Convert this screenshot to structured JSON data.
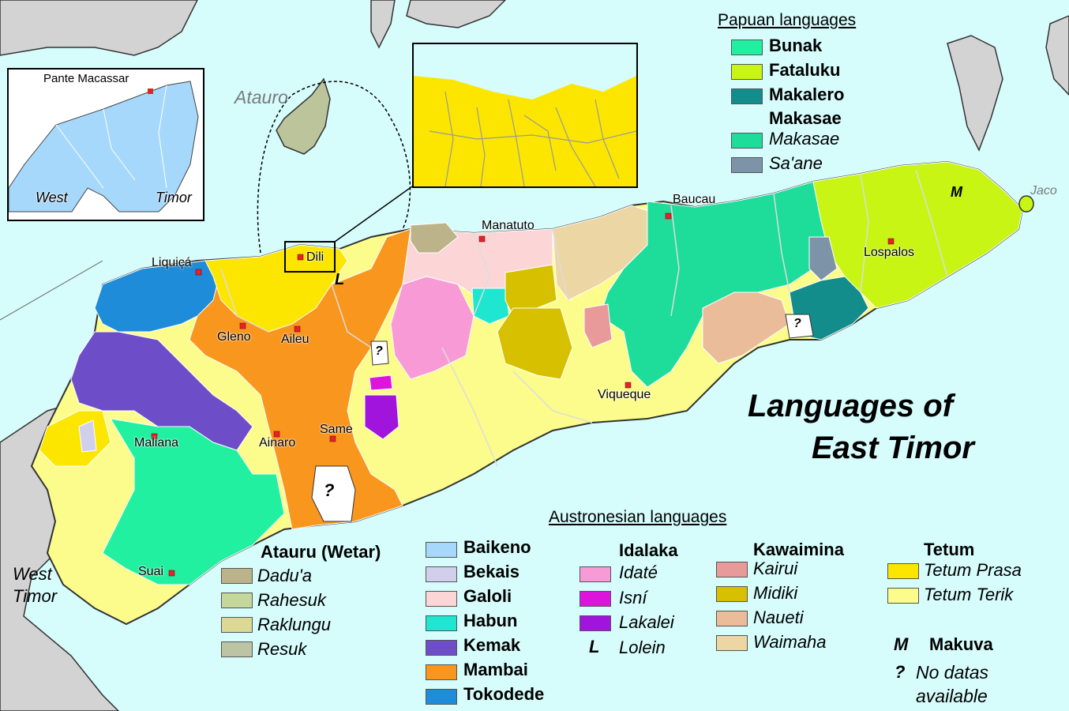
{
  "map": {
    "title_line1": "Languages of",
    "title_line2": "East Timor",
    "places": {
      "atauro": "Atauro",
      "dili": "Dili",
      "liquica": "Liquiçá",
      "manatuto": "Manatuto",
      "baucau": "Baucau",
      "lospalos": "Lospalos",
      "jaco": "Jaco",
      "gleno": "Gleno",
      "aileu": "Aileu",
      "viqueque": "Viqueque",
      "same": "Same",
      "ainaro": "Ainaro",
      "maliana": "Maliana",
      "suai": "Suai",
      "west_timor_line1": "West",
      "west_timor_line2": "Timor",
      "pante_macassar": "Pante Macassar",
      "inset_west": "West",
      "inset_timor": "Timor"
    },
    "map_marks": {
      "lolein_marker": "L",
      "makuva_marker": "M",
      "unknown_1": "?",
      "unknown_2": "?",
      "unknown_3": "?"
    }
  },
  "legend": {
    "papuan": {
      "heading": "Papuan languages",
      "items": [
        {
          "label": "Bunak",
          "color": "#21f0a0",
          "style": "bold"
        },
        {
          "label": "Fataluku",
          "color": "#c8f514",
          "style": "bold"
        },
        {
          "label": "Makalero",
          "color": "#138c8c",
          "style": "bold"
        },
        {
          "label": "Makasae",
          "color": "",
          "style": "bold"
        },
        {
          "label": "Makasae",
          "color": "#1edc9a",
          "style": "italic"
        },
        {
          "label": "Sa'ane",
          "color": "#7c93a8",
          "style": "italic"
        }
      ]
    },
    "austronesian": {
      "heading": "Austronesian languages",
      "ataurus": {
        "head": "Atauru (Wetar)",
        "items": [
          {
            "label": "Dadu'a",
            "color": "#bcb38a"
          },
          {
            "label": "Rahesuk",
            "color": "#c4d89c"
          },
          {
            "label": "Raklungu",
            "color": "#dcd896"
          },
          {
            "label": "Resuk",
            "color": "#bcc4a4"
          }
        ]
      },
      "bold_langs": [
        {
          "label": "Baikeno",
          "color": "#a6d8fc"
        },
        {
          "label": "Bekais",
          "color": "#d0d0ec"
        },
        {
          "label": "Galoli",
          "color": "#fcd6d6"
        },
        {
          "label": "Habun",
          "color": "#1ee6d0"
        },
        {
          "label": "Kemak",
          "color": "#6e4ec8"
        },
        {
          "label": "Mambai",
          "color": "#f8961e"
        },
        {
          "label": "Tokodede",
          "color": "#1e8cd8"
        }
      ],
      "idalaka": {
        "head": "Idalaka",
        "items": [
          {
            "label": "Idaté",
            "color": "#f89ad6"
          },
          {
            "label": "Isní",
            "color": "#dc14dc"
          },
          {
            "label": "Lakalei",
            "color": "#a014dc"
          },
          {
            "label": "Lolein",
            "color": "",
            "marker": "L"
          }
        ]
      },
      "kawaimina": {
        "head": "Kawaimina",
        "items": [
          {
            "label": "Kairui",
            "color": "#e89a9a"
          },
          {
            "label": "Midiki",
            "color": "#d6c000"
          },
          {
            "label": "Naueti",
            "color": "#eabc9a"
          },
          {
            "label": "Waimaha",
            "color": "#ecd6a4"
          }
        ]
      },
      "tetum": {
        "head": "Tetum",
        "items": [
          {
            "label": "Tetum Prasa",
            "color": "#fce600"
          },
          {
            "label": "Tetum Terik",
            "color": "#fcfc8c"
          }
        ]
      },
      "extra": {
        "makuva_marker": "M",
        "makuva_label": "Makuva",
        "nodata_marker": "?",
        "nodata_line1": "No datas",
        "nodata_line2": "available"
      }
    }
  }
}
